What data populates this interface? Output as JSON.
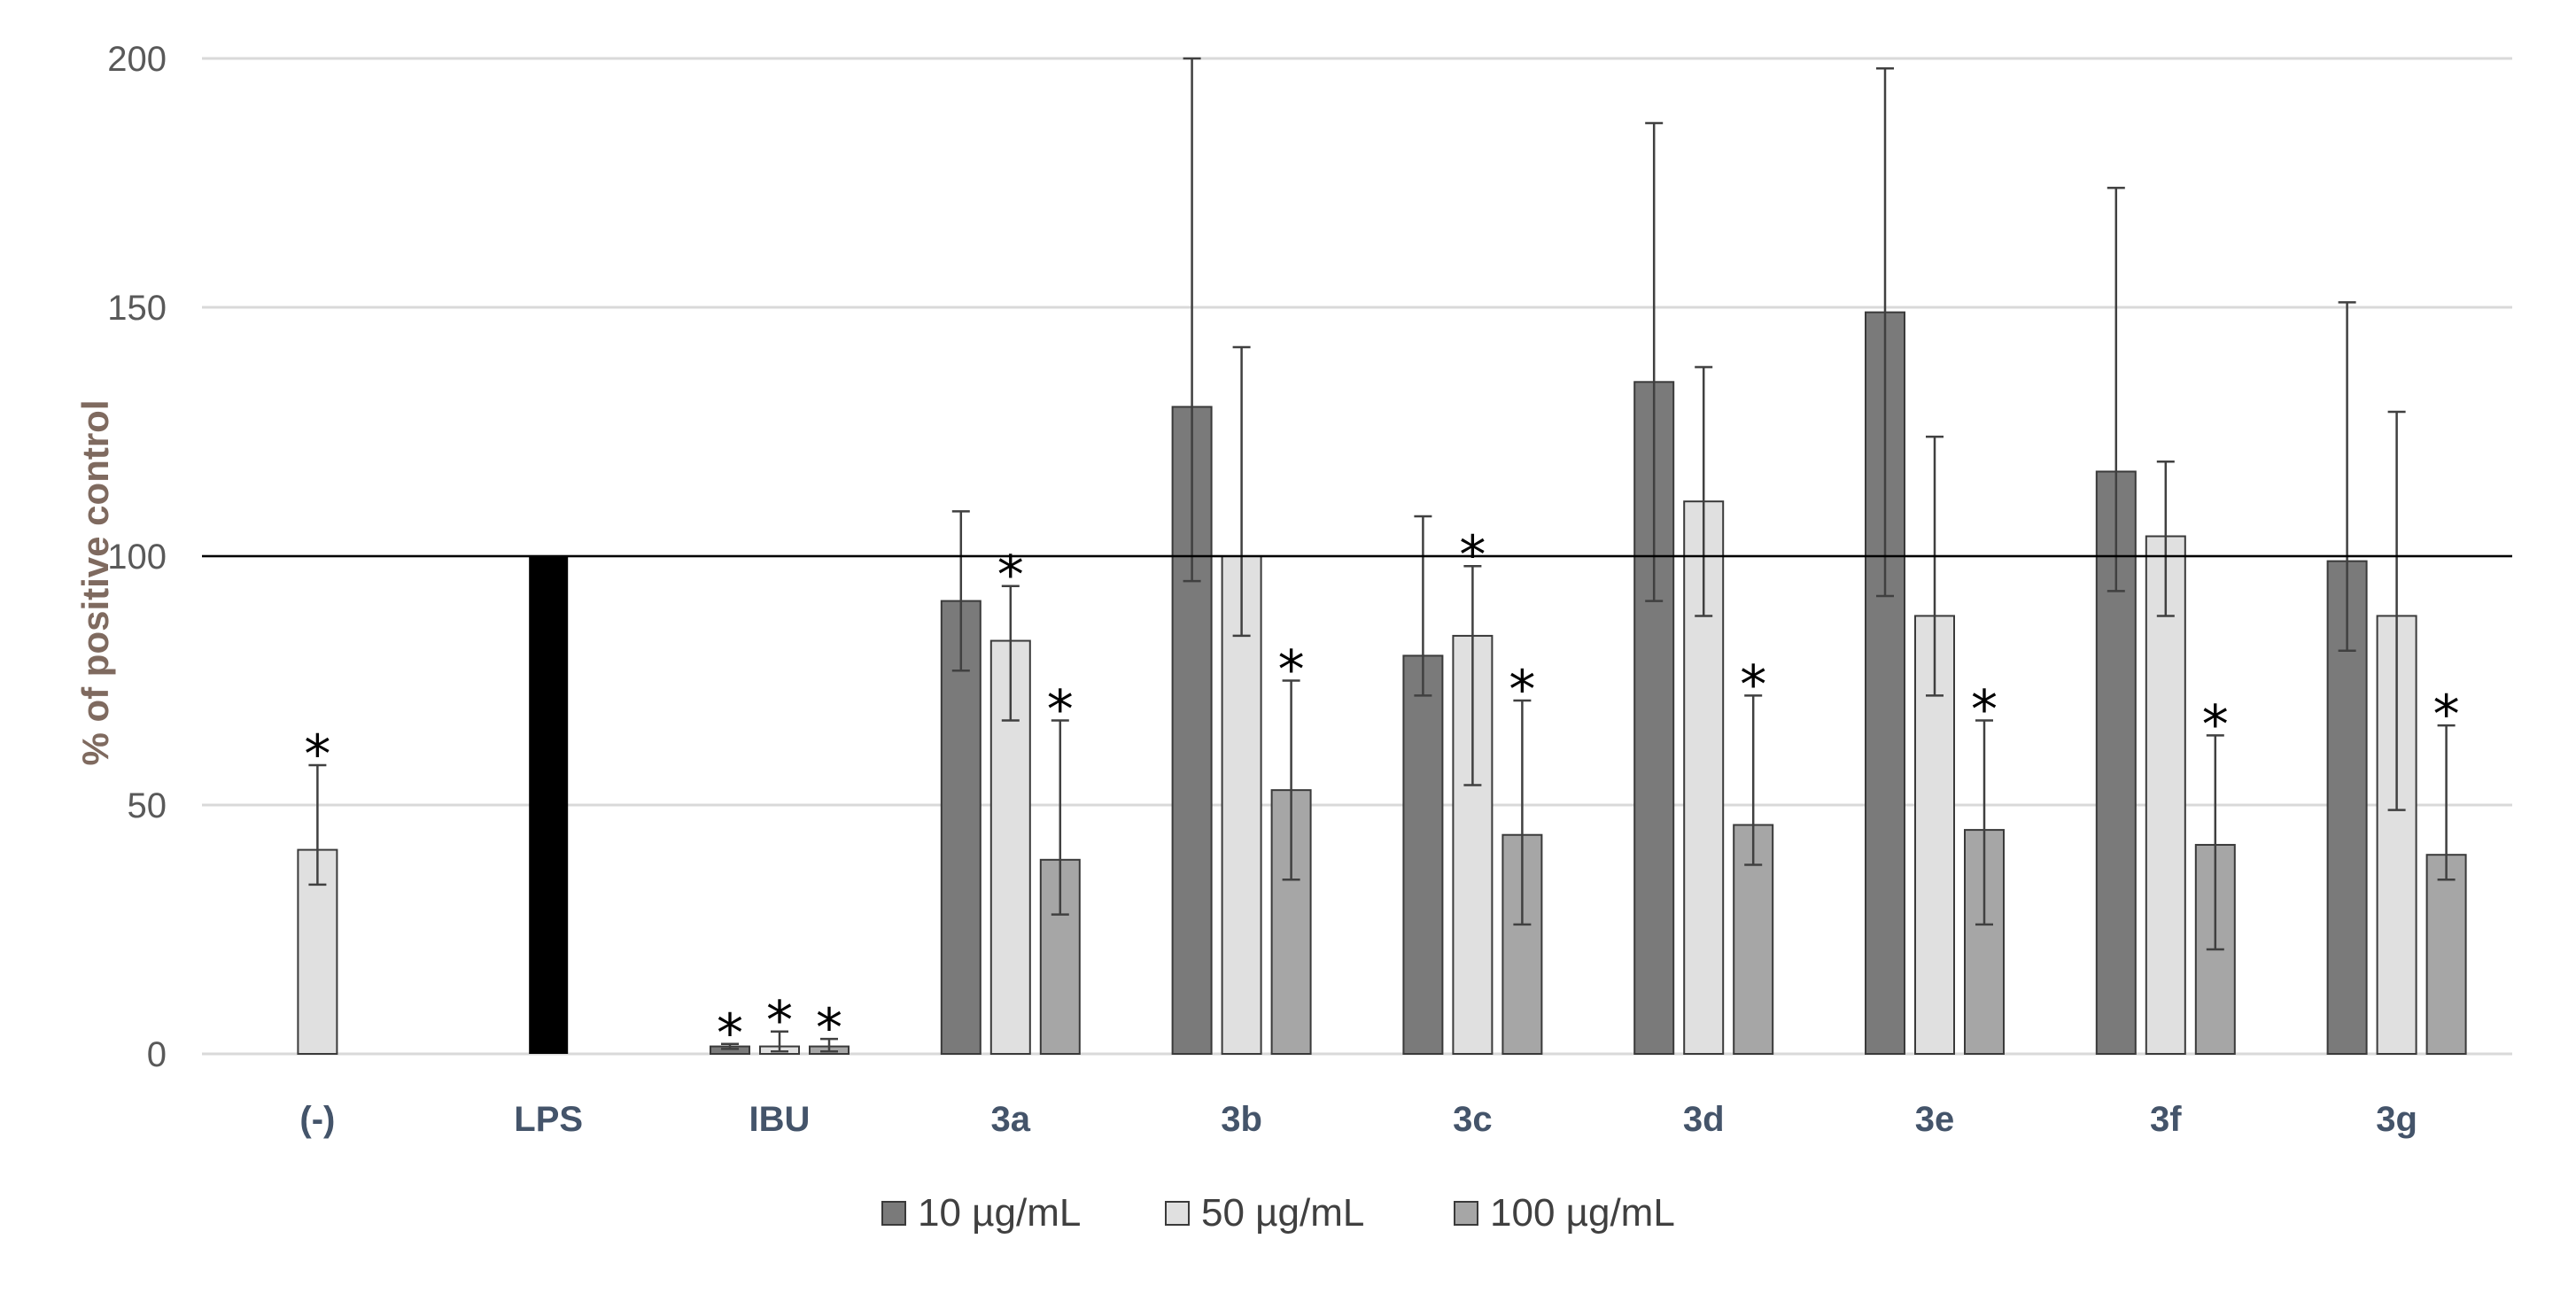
{
  "chart_data": {
    "type": "bar",
    "title": "",
    "xlabel": "",
    "ylabel": "% of positive control",
    "ylim": [
      0,
      200
    ],
    "yticks": [
      0,
      50,
      100,
      150,
      200
    ],
    "reference_line": 100,
    "grid": true,
    "legend_position": "bottom",
    "categories": [
      "(-)",
      "LPS",
      "IBU",
      "3a",
      "3b",
      "3c",
      "3d",
      "3e",
      "3f",
      "3g"
    ],
    "series": [
      {
        "name": "10 µg/mL",
        "color": "#7a7a7a",
        "values": [
          null,
          null,
          1.5,
          91,
          130,
          80,
          135,
          149,
          117,
          99
        ],
        "error_lower": [
          null,
          null,
          0.5,
          14,
          35,
          8,
          44,
          57,
          24,
          18
        ],
        "error_upper": [
          null,
          null,
          0.5,
          18,
          70,
          28,
          52,
          49,
          57,
          52
        ],
        "significant": [
          false,
          false,
          true,
          false,
          false,
          false,
          false,
          false,
          false,
          false
        ]
      },
      {
        "name": "50 µg/mL",
        "color": "#e0e0e0",
        "values": [
          41,
          null,
          1.5,
          83,
          100,
          84,
          111,
          88,
          104,
          88
        ],
        "error_lower": [
          7,
          null,
          1,
          16,
          16,
          30,
          23,
          16,
          16,
          39
        ],
        "error_upper": [
          17,
          null,
          3,
          11,
          42,
          14,
          27,
          36,
          15,
          41
        ],
        "significant": [
          true,
          false,
          true,
          true,
          false,
          true,
          false,
          false,
          false,
          false
        ]
      },
      {
        "name": "100 µg/mL",
        "color": "#a6a6a6",
        "values": [
          null,
          null,
          1.5,
          39,
          53,
          44,
          46,
          45,
          42,
          40
        ],
        "error_lower": [
          null,
          null,
          1,
          11,
          18,
          18,
          8,
          19,
          21,
          5
        ],
        "error_upper": [
          null,
          null,
          1.5,
          28,
          22,
          27,
          26,
          22,
          22,
          26
        ],
        "significant": [
          false,
          false,
          true,
          true,
          true,
          true,
          true,
          true,
          true,
          true
        ]
      }
    ],
    "positive_control": {
      "category": "LPS",
      "value": 100,
      "color": "#000000"
    },
    "significance_marker": "*"
  }
}
